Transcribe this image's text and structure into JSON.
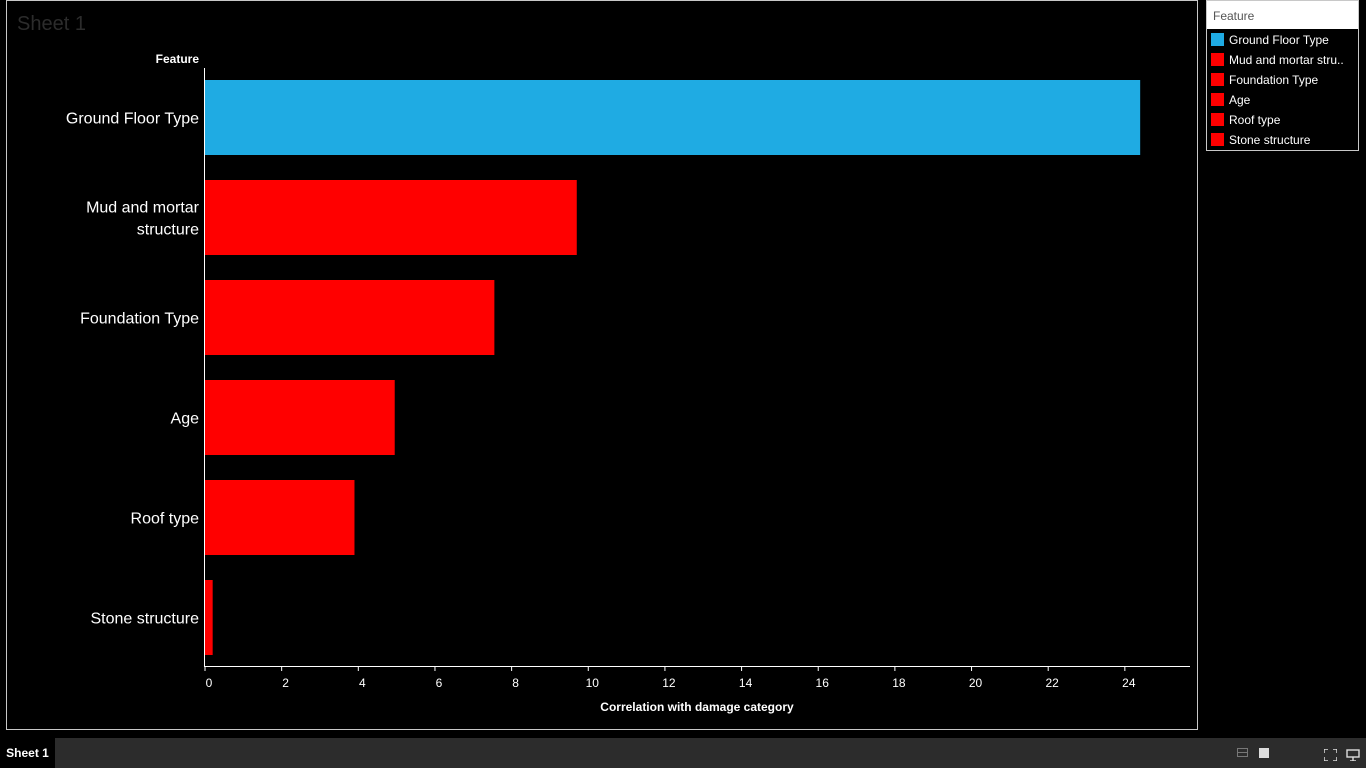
{
  "sheet": {
    "title": "Sheet 1",
    "tab_label": "Sheet 1"
  },
  "legend": {
    "title": "Feature",
    "items": [
      {
        "label": "Ground Floor Type",
        "color": "#1fabe3"
      },
      {
        "label": "Mud and mortar stru..",
        "color": "#ff0000"
      },
      {
        "label": "Foundation Type",
        "color": "#ff0000"
      },
      {
        "label": "Age",
        "color": "#ff0000"
      },
      {
        "label": "Roof type",
        "color": "#ff0000"
      },
      {
        "label": "Stone structure",
        "color": "#ff0000"
      }
    ]
  },
  "chart_data": {
    "type": "bar",
    "orientation": "horizontal",
    "categories": [
      "Ground Floor Type",
      "Mud and mortar structure",
      "Foundation Type",
      "Age",
      "Roof type",
      "Stone structure"
    ],
    "category_lines": [
      [
        "Ground Floor Type"
      ],
      [
        "Mud and mortar",
        "structure"
      ],
      [
        "Foundation Type"
      ],
      [
        "Age"
      ],
      [
        "Roof type"
      ],
      [
        "Stone structure"
      ]
    ],
    "values": [
      24.4,
      9.7,
      7.55,
      4.95,
      3.9,
      0.2
    ],
    "colors": [
      "#1fabe3",
      "#ff0000",
      "#ff0000",
      "#ff0000",
      "#ff0000",
      "#ff0000"
    ],
    "ylabel": "Feature",
    "xlabel": "Correlation with damage category",
    "xlim": [
      0,
      25.7
    ],
    "xticks": [
      0,
      2,
      4,
      6,
      8,
      10,
      12,
      14,
      16,
      18,
      20,
      22,
      24
    ],
    "grid": false,
    "legend_position": "top-right",
    "background": "#000000"
  },
  "toolbar": {
    "icons": [
      "grid-view-icon",
      "single-view-icon",
      "fullscreen-icon",
      "present-icon"
    ]
  }
}
